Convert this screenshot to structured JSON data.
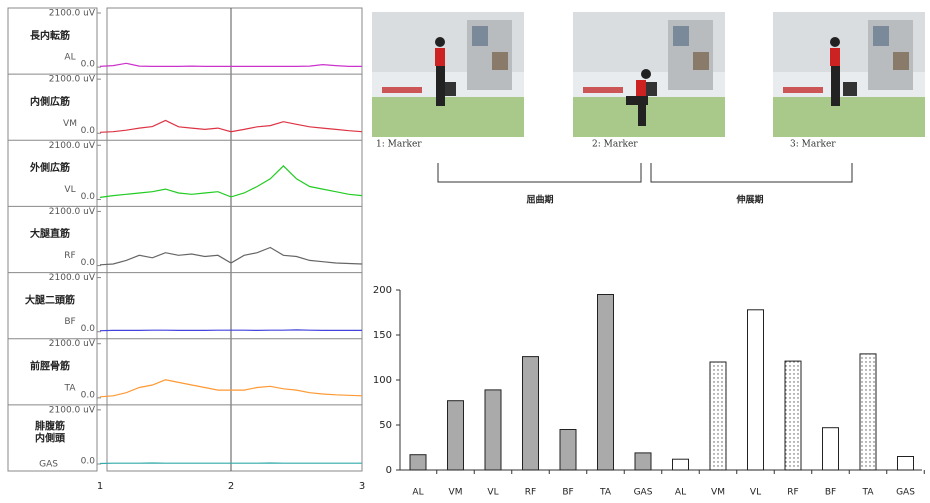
{
  "chart_data": [
    {
      "type": "line",
      "xlim": [
        1,
        3
      ],
      "xticks": [
        1,
        2,
        3
      ],
      "x_grid": true,
      "x": [
        1.0,
        1.1,
        1.2,
        1.3,
        1.4,
        1.5,
        1.6,
        1.7,
        1.8,
        1.9,
        2.0,
        2.1,
        2.2,
        2.3,
        2.4,
        2.5,
        2.6,
        2.7,
        2.8,
        2.9,
        3.0
      ],
      "series": [
        {
          "name": [
            "長内転筋"
          ],
          "abbr": "AL",
          "color": "#cc33cc",
          "ylim": [
            0,
            2100
          ],
          "yticks": [
            {
              "value": 0,
              "label": "0.0"
            },
            {
              "value": 2100,
              "label": "2100.0 uV"
            }
          ],
          "values": [
            30,
            60,
            150,
            40,
            30,
            30,
            30,
            40,
            30,
            30,
            30,
            30,
            30,
            30,
            30,
            30,
            40,
            100,
            60,
            30,
            30
          ]
        },
        {
          "name": [
            "内側広筋"
          ],
          "abbr": "VM",
          "color": "#dd3344",
          "ylim": [
            0,
            2100
          ],
          "yticks": [
            {
              "value": 0,
              "label": "0.0"
            },
            {
              "value": 2100,
              "label": "2100.0 uV"
            }
          ],
          "values": [
            40,
            60,
            120,
            200,
            260,
            500,
            250,
            200,
            150,
            200,
            60,
            150,
            250,
            300,
            450,
            350,
            250,
            200,
            150,
            100,
            60
          ]
        },
        {
          "name": [
            "外側広筋"
          ],
          "abbr": "VL",
          "color": "#22cc22",
          "ylim": [
            0,
            2100
          ],
          "yticks": [
            {
              "value": 0,
              "label": "0.0"
            },
            {
              "value": 2100,
              "label": "2100.0 uV"
            }
          ],
          "values": [
            80,
            150,
            200,
            250,
            300,
            400,
            250,
            200,
            250,
            300,
            100,
            250,
            500,
            800,
            1300,
            800,
            500,
            400,
            300,
            200,
            150
          ]
        },
        {
          "name": [
            "大腿直筋"
          ],
          "abbr": "RF",
          "color": "#666666",
          "ylim": [
            0,
            2100
          ],
          "yticks": [
            {
              "value": 0,
              "label": "0.0"
            },
            {
              "value": 2100,
              "label": "2100.0 uV"
            }
          ],
          "values": [
            30,
            60,
            200,
            400,
            300,
            500,
            400,
            450,
            350,
            400,
            100,
            400,
            500,
            700,
            400,
            350,
            200,
            150,
            100,
            80,
            60
          ]
        },
        {
          "name": [
            "大腿二頭筋"
          ],
          "abbr": "BF",
          "color": "#4444dd",
          "ylim": [
            0,
            2100
          ],
          "yticks": [
            {
              "value": 0,
              "label": "0.0"
            },
            {
              "value": 2100,
              "label": "2100.0 uV"
            }
          ],
          "values": [
            40,
            50,
            50,
            50,
            60,
            60,
            50,
            50,
            50,
            60,
            60,
            60,
            50,
            60,
            60,
            70,
            60,
            50,
            50,
            50,
            50
          ]
        },
        {
          "name": [
            "前脛骨筋"
          ],
          "abbr": "TA",
          "color": "#ff9933",
          "ylim": [
            0,
            2100
          ],
          "yticks": [
            {
              "value": 0,
              "label": "0.0"
            },
            {
              "value": 2100,
              "label": "2100.0 uV"
            }
          ],
          "values": [
            40,
            80,
            200,
            400,
            500,
            700,
            600,
            500,
            400,
            300,
            300,
            300,
            400,
            450,
            350,
            300,
            200,
            150,
            120,
            100,
            80
          ]
        },
        {
          "name": [
            "腓腹筋",
            "内側頭"
          ],
          "abbr": "GAS",
          "color": "#33aaaa",
          "ylim": [
            0,
            2100
          ],
          "yticks": [
            {
              "value": 0,
              "label": "0.0"
            },
            {
              "value": 2100,
              "label": "2100.0 uV"
            }
          ],
          "values": [
            20,
            30,
            30,
            30,
            40,
            30,
            30,
            30,
            30,
            30,
            30,
            30,
            30,
            40,
            30,
            30,
            30,
            30,
            30,
            30,
            30
          ]
        }
      ]
    },
    {
      "type": "bar",
      "ylim": [
        0,
        200
      ],
      "yticks": [
        0,
        50,
        100,
        150,
        200
      ],
      "categories": [
        "AL",
        "VM",
        "VL",
        "RF",
        "BF",
        "TA",
        "GAS",
        "AL",
        "VM",
        "VL",
        "RF",
        "BF",
        "TA",
        "GAS"
      ],
      "values": [
        17,
        77,
        89,
        126,
        45,
        195,
        19,
        12,
        120,
        178,
        121,
        47,
        129,
        15
      ],
      "fills": [
        "gray",
        "gray",
        "gray",
        "gray",
        "gray",
        "gray",
        "gray",
        "white",
        "dotted",
        "white",
        "dotted",
        "white",
        "dotted",
        "white"
      ]
    }
  ],
  "photos": {
    "captions": [
      "1: Marker",
      "2: Marker",
      "3: Marker"
    ]
  },
  "phases": [
    "屈曲期",
    "伸展期"
  ]
}
